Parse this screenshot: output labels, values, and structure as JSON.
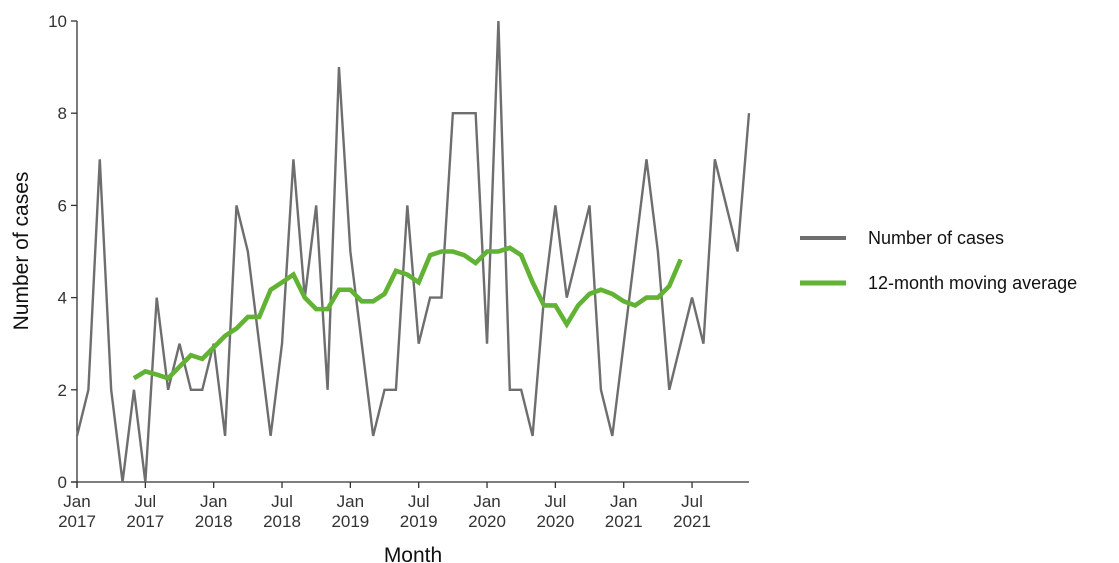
{
  "chart_data": {
    "type": "line",
    "xlabel": "Month",
    "ylabel": "Number of cases",
    "ylim": [
      0,
      10
    ],
    "y_ticks": [
      "0",
      "2",
      "4",
      "6",
      "8",
      "10"
    ],
    "x_ticks": [
      {
        "line1": "Jan",
        "line2": "2017",
        "month_index": 0
      },
      {
        "line1": "Jul",
        "line2": "2017",
        "month_index": 6
      },
      {
        "line1": "Jan",
        "line2": "2018",
        "month_index": 12
      },
      {
        "line1": "Jul",
        "line2": "2018",
        "month_index": 18
      },
      {
        "line1": "Jan",
        "line2": "2019",
        "month_index": 24
      },
      {
        "line1": "Jul",
        "line2": "2019",
        "month_index": 30
      },
      {
        "line1": "Jan",
        "line2": "2020",
        "month_index": 36
      },
      {
        "line1": "Jul",
        "line2": "2020",
        "month_index": 42
      },
      {
        "line1": "Jan",
        "line2": "2021",
        "month_index": 48
      },
      {
        "line1": "Jul",
        "line2": "2021",
        "month_index": 54
      }
    ],
    "x_range_months": [
      0,
      59
    ],
    "grid": false,
    "legend_position": "right",
    "series": [
      {
        "name": "Number of cases",
        "color": "#6e6e6e",
        "start_month_index": 0,
        "values": [
          1,
          2,
          7,
          2,
          0,
          2,
          0,
          4,
          2,
          3,
          2,
          2,
          3,
          1,
          6,
          5,
          3,
          1,
          3,
          7,
          4,
          6,
          2,
          9,
          5,
          3,
          1,
          2,
          2,
          6,
          3,
          4,
          4,
          8,
          8,
          8,
          3,
          10,
          2,
          2,
          1,
          4,
          6,
          4,
          5,
          6,
          2,
          1,
          3,
          5,
          7,
          5,
          2,
          3,
          4,
          3,
          7,
          6,
          5,
          8
        ]
      },
      {
        "name": "12-month moving average",
        "color": "#62b233",
        "start_month_index": 5,
        "values": [
          2.25,
          2.4,
          2.33,
          2.25,
          2.5,
          2.75,
          2.67,
          2.92,
          3.17,
          3.33,
          3.58,
          3.58,
          4.17,
          4.33,
          4.5,
          4.0,
          3.75,
          3.75,
          4.17,
          4.17,
          3.92,
          3.92,
          4.08,
          4.58,
          4.5,
          4.33,
          4.92,
          5.0,
          5.0,
          4.92,
          4.75,
          5.0,
          5.0,
          5.08,
          4.92,
          4.33,
          3.83,
          3.83,
          3.42,
          3.83,
          4.08,
          4.17,
          4.08,
          3.92,
          3.83,
          4.0,
          4.0,
          4.25,
          4.83
        ]
      }
    ]
  }
}
